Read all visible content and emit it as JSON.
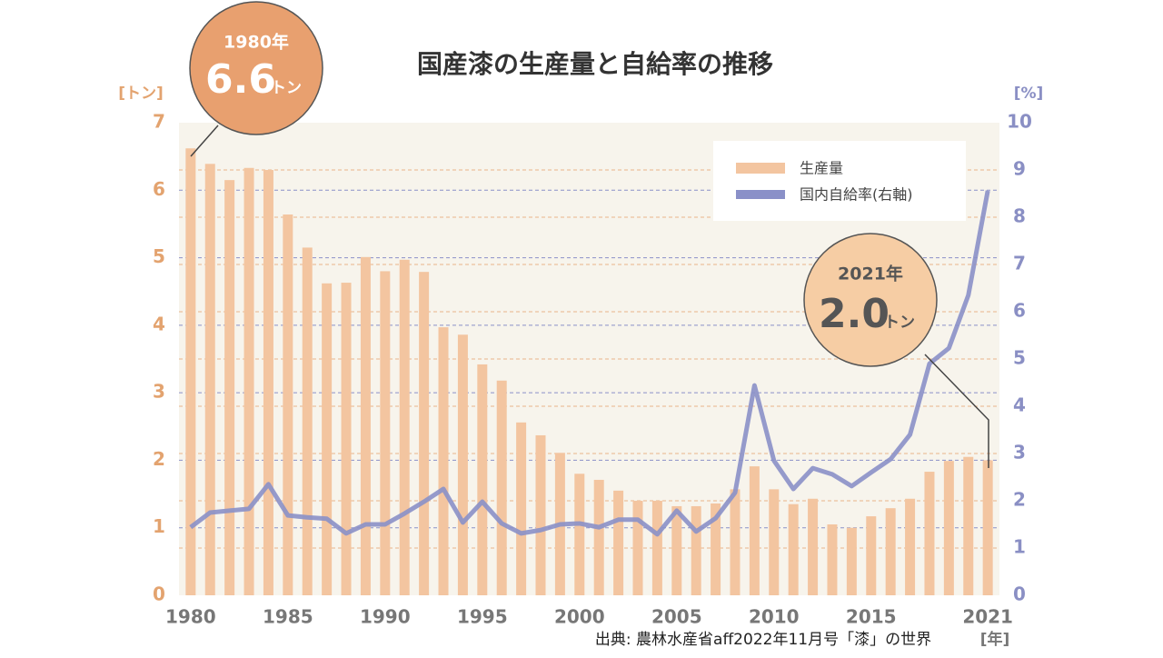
{
  "chart_data": {
    "type": "bar",
    "title": "国産漆の生産量と自給率の推移",
    "y_label": "[トン]",
    "y2_label": "[%]",
    "x_label": "[年]",
    "source": "出典: 農林水産省aff2022年11月号「漆」の世界",
    "x": [
      1980,
      1981,
      1982,
      1983,
      1984,
      1985,
      1986,
      1987,
      1988,
      1989,
      1990,
      1991,
      1992,
      1993,
      1994,
      1995,
      1996,
      1997,
      1998,
      1999,
      2000,
      2001,
      2002,
      2003,
      2004,
      2005,
      2006,
      2007,
      2008,
      2009,
      2010,
      2011,
      2012,
      2013,
      2014,
      2015,
      2016,
      2017,
      2018,
      2019,
      2020,
      2021
    ],
    "xlim": [
      1979.4,
      2021.6
    ],
    "xticks": [
      1980,
      1985,
      1990,
      1995,
      2000,
      2005,
      2010,
      2015,
      2021
    ],
    "ylim": [
      0,
      7
    ],
    "yticks": [
      0,
      1,
      2,
      3,
      4,
      5,
      6,
      7
    ],
    "y2lim": [
      0,
      10
    ],
    "y2ticks": [
      0,
      1,
      2,
      3,
      4,
      5,
      6,
      7,
      8,
      9,
      10
    ],
    "grid": true,
    "legend": "upper right",
    "series": [
      {
        "name": "生産量",
        "type": "bar",
        "color": "#f3c5a0",
        "values": [
          6.62,
          6.39,
          6.15,
          6.33,
          6.3,
          5.64,
          5.15,
          4.62,
          4.63,
          5.01,
          4.8,
          4.97,
          4.79,
          3.97,
          3.86,
          3.42,
          3.18,
          2.56,
          2.37,
          2.11,
          1.8,
          1.71,
          1.55,
          1.4,
          1.4,
          1.32,
          1.32,
          1.36,
          1.57,
          1.91,
          1.57,
          1.35,
          1.43,
          1.05,
          1.0,
          1.17,
          1.29,
          1.43,
          1.83,
          1.99,
          2.05,
          2.0
        ]
      },
      {
        "name": "国内自給率(右軸)",
        "type": "line",
        "axis": "y2",
        "color": "#8a90c8",
        "values": [
          1.44,
          1.75,
          1.79,
          1.83,
          2.35,
          1.69,
          1.65,
          1.62,
          1.31,
          1.5,
          1.5,
          1.73,
          1.98,
          2.25,
          1.54,
          1.98,
          1.52,
          1.31,
          1.38,
          1.5,
          1.52,
          1.44,
          1.6,
          1.6,
          1.29,
          1.79,
          1.35,
          1.63,
          2.17,
          4.44,
          2.85,
          2.25,
          2.69,
          2.56,
          2.31,
          2.6,
          2.88,
          3.4,
          4.9,
          5.23,
          6.35,
          8.56
        ]
      }
    ],
    "annotations": [
      {
        "year": "1980年",
        "value": "6.6",
        "unit": "トン"
      },
      {
        "year": "2021年",
        "value": "2.0",
        "unit": "トン"
      }
    ]
  }
}
